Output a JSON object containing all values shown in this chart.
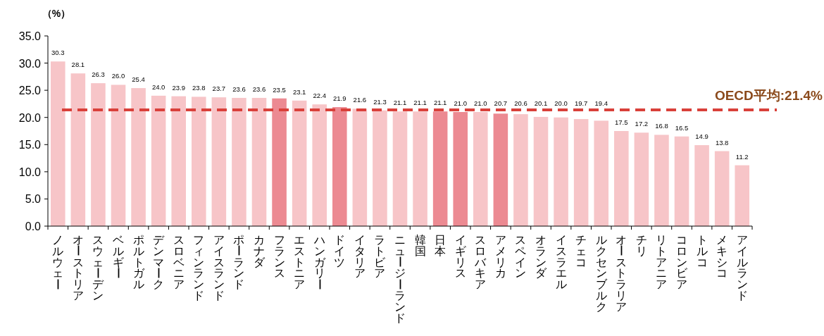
{
  "chart_data": {
    "type": "bar",
    "ylabel": "（%）",
    "categories": [
      "ノルウェー",
      "オーストリア",
      "スウェーデン",
      "ベルギー",
      "ポルトガル",
      "デンマーク",
      "スロベニア",
      "フィンランド",
      "アイスランド",
      "ポーランド",
      "カナダ",
      "フランス",
      "エストニア",
      "ハンガリー",
      "ドイツ",
      "イタリア",
      "ラトビア",
      "ニュージーランド",
      "韓国",
      "日本",
      "イギリス",
      "スロバキア",
      "アメリカ",
      "スペイン",
      "オランダ",
      "イスラエル",
      "チェコ",
      "ルクセンブルク",
      "オーストラリア",
      "チリ",
      "リトアニア",
      "コロンビア",
      "トルコ",
      "メキシコ",
      "アイルランド"
    ],
    "values": [
      30.3,
      28.1,
      26.3,
      26.0,
      25.4,
      24.0,
      23.9,
      23.8,
      23.7,
      23.6,
      23.6,
      23.5,
      23.1,
      22.4,
      21.9,
      21.6,
      21.3,
      21.1,
      21.1,
      21.1,
      21.0,
      21.0,
      20.7,
      20.6,
      20.1,
      20.0,
      19.7,
      19.4,
      17.5,
      17.2,
      16.8,
      16.5,
      14.9,
      13.8,
      11.2
    ],
    "value_labels": [
      "30.3",
      "28.1",
      "26.3",
      "26.0",
      "25.4",
      "24.0",
      "23.9",
      "23.8",
      "23.7",
      "23.6",
      "23.6",
      "23.5",
      "23.1",
      "22.4",
      "21.9",
      "21.6",
      "21.3",
      "21.1",
      "21.1",
      "21.1",
      "21.0",
      "21.0",
      "20.7",
      "20.6",
      "20.1",
      "20.0",
      "19.7",
      "19.4",
      "17.5",
      "17.2",
      "16.8",
      "16.5",
      "14.9",
      "13.8",
      "11.2"
    ],
    "colors": [
      "#f7c5c8",
      "#f7c5c8",
      "#f7c5c8",
      "#f7c5c8",
      "#f7c5c8",
      "#f7c5c8",
      "#f7c5c8",
      "#f7c5c8",
      "#f7c5c8",
      "#f7c5c8",
      "#f7c5c8",
      "#ec8a92",
      "#f7c5c8",
      "#f7c5c8",
      "#ec8a92",
      "#f7c5c8",
      "#f7c5c8",
      "#f7c5c8",
      "#f7c5c8",
      "#ec8a92",
      "#ec8a92",
      "#f7c5c8",
      "#ec8a92",
      "#f7c5c8",
      "#f7c5c8",
      "#f7c5c8",
      "#f7c5c8",
      "#f7c5c8",
      "#f7c5c8",
      "#f7c5c8",
      "#f7c5c8",
      "#f7c5c8",
      "#f7c5c8",
      "#f7c5c8",
      "#f7c5c8"
    ],
    "ylim": [
      0,
      35
    ],
    "yticks": [
      {
        "value": 0,
        "label": "0.0"
      },
      {
        "value": 5,
        "label": "5.0"
      },
      {
        "value": 10,
        "label": "10.0"
      },
      {
        "value": 15,
        "label": "15.0"
      },
      {
        "value": 20,
        "label": "20.0"
      },
      {
        "value": 25,
        "label": "25.0"
      },
      {
        "value": 30,
        "label": "30.0"
      },
      {
        "value": 35,
        "label": "35.0"
      }
    ],
    "ref_lines": [
      {
        "axis": "y",
        "value": 21.4,
        "label": "OECD平均:21.4%",
        "color": "#d9403a",
        "line_style": "dashed"
      }
    ],
    "grid": false
  }
}
